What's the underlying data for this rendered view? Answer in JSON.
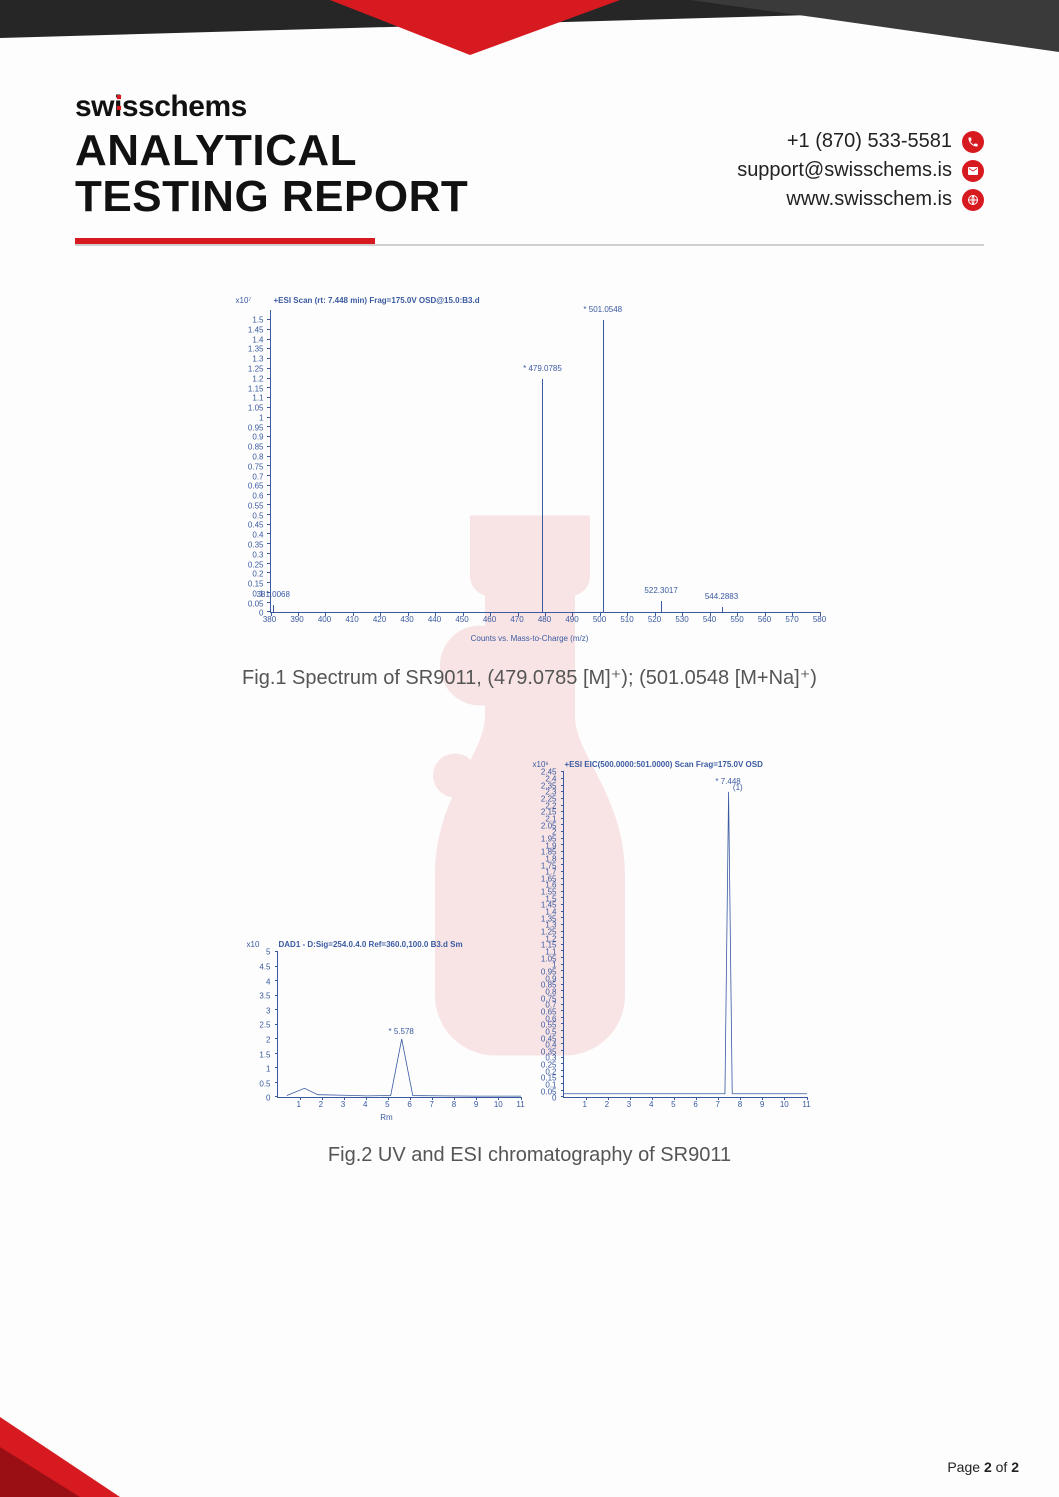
{
  "brand": {
    "part1": "sw",
    "part2": "sschems"
  },
  "report_title_l1": "ANALYTICAL",
  "report_title_l2": "TESTING REPORT",
  "contact": {
    "phone": "+1 (870) 533-5581",
    "email": "support@swisschems.is",
    "web": "www.swisschem.is"
  },
  "colors": {
    "red": "#d71920",
    "dark": "#262626",
    "plot": "#3a5aa0",
    "grey": "#cfcfcf",
    "text_muted": "#555555",
    "page_bg": "#fdfdfd"
  },
  "page_num": {
    "prefix": "Page ",
    "cur": "2",
    "mid": " of ",
    "total": "2"
  },
  "fig1": {
    "caption": "Fig.1 Spectrum of SR9011, (479.0785 [M]⁺); (501.0548 [M+Na]⁺)",
    "type": "mass-spectrum",
    "exp_label": "x10⁷",
    "top_label": "+ESI Scan (rt: 7.448 min) Frag=175.0V OSD@15.0:B3.d",
    "xaxis_title": "Counts vs. Mass-to-Charge (m/z)",
    "xlim": [
      380,
      580
    ],
    "xticks": [
      380,
      390,
      400,
      410,
      420,
      430,
      440,
      450,
      460,
      470,
      480,
      490,
      500,
      510,
      520,
      530,
      540,
      550,
      560,
      570,
      580
    ],
    "ylim": [
      0,
      1.55
    ],
    "yticks": [
      "0",
      "0.05",
      "0.1",
      "0.15",
      "0.2",
      "0.25",
      "0.3",
      "0.35",
      "0.4",
      "0.45",
      "0.5",
      "0.55",
      "0.6",
      "0.65",
      "0.7",
      "0.75",
      "0.8",
      "0.85",
      "0.9",
      "0.95",
      "1",
      "1.05",
      "1.1",
      "1.15",
      "1.2",
      "1.25",
      "1.3",
      "1.35",
      "1.4",
      "1.45",
      "1.5"
    ],
    "peaks": [
      {
        "mz": 479.0785,
        "intensity": 1.2,
        "label": "* 479.0785"
      },
      {
        "mz": 501.0548,
        "intensity": 1.5,
        "label": "* 501.0548"
      },
      {
        "mz": 381.0,
        "intensity": 0.04,
        "label": "381.0068"
      },
      {
        "mz": 522.3,
        "intensity": 0.06,
        "label": "522.3017"
      },
      {
        "mz": 544.3,
        "intensity": 0.03,
        "label": "544.2883"
      }
    ]
  },
  "fig2": {
    "caption": "Fig.2 UV and ESI chromatography of SR9011",
    "uv": {
      "type": "chromatogram",
      "exp_label": "x10⁲",
      "top_label": "DAD1 - D:Sig=254.0.4.0  Ref=360.0,100.0 B3.d  Sm",
      "xaxis_title": "Rm",
      "xlim": [
        0,
        11
      ],
      "xticks": [
        1,
        2,
        3,
        4,
        5,
        6,
        7,
        8,
        9,
        10,
        11
      ],
      "ylim": [
        0,
        5
      ],
      "yticks": [
        "0",
        "0.5",
        "1",
        "1.5",
        "2",
        "2.5",
        "3",
        "3.5",
        "4",
        "4.5",
        "5"
      ],
      "peak_rt": 5.6,
      "peak_height": 2.0,
      "peak_label": "* 5.578",
      "baseline_points": [
        {
          "x": 0.4,
          "y": 0.05
        },
        {
          "x": 1.2,
          "y": 0.3
        },
        {
          "x": 1.8,
          "y": 0.08
        },
        {
          "x": 3.0,
          "y": 0.06
        },
        {
          "x": 4.0,
          "y": 0.04
        },
        {
          "x": 5.1,
          "y": 0.05
        },
        {
          "x": 5.6,
          "y": 2.0
        },
        {
          "x": 6.1,
          "y": 0.05
        },
        {
          "x": 7.5,
          "y": 0.04
        },
        {
          "x": 9.0,
          "y": 0.03
        },
        {
          "x": 11.0,
          "y": 0.03
        }
      ]
    },
    "esi": {
      "type": "chromatogram",
      "exp_label": "x10⁶",
      "top_label": "+ESI EIC(500.0000:501.0000) Scan Frag=175.0V OSD",
      "xaxis_title": "",
      "xlim": [
        0,
        11
      ],
      "xticks": [
        1,
        2,
        3,
        4,
        5,
        6,
        7,
        8,
        9,
        10,
        11
      ],
      "ylim": [
        0,
        2.45
      ],
      "yticks": [
        "0",
        "0.05",
        "0.1",
        "0.15",
        "0.2",
        "0.25",
        "0.3",
        "0.35",
        "0.4",
        "0.45",
        "0.5",
        "0.55",
        "0.6",
        "0.65",
        "0.7",
        "0.75",
        "0.8",
        "0.85",
        "0.9",
        "0.95",
        "1",
        "1.05",
        "1.1",
        "1.15",
        "1.2",
        "1.25",
        "1.3",
        "1.35",
        "1.4",
        "1.45",
        "1.5",
        "1.55",
        "1.6",
        "1.65",
        "1.7",
        "1.75",
        "1.8",
        "1.85",
        "1.9",
        "1.95",
        "2",
        "2.05",
        "2.1",
        "2.15",
        "2.2",
        "2.25",
        "2.3",
        "2.35",
        "2.4",
        "2.45"
      ],
      "peak_rt": 7.45,
      "peak_height": 2.3,
      "peak_label": "* 7.448",
      "peak_annotation_right": "(1)"
    }
  }
}
